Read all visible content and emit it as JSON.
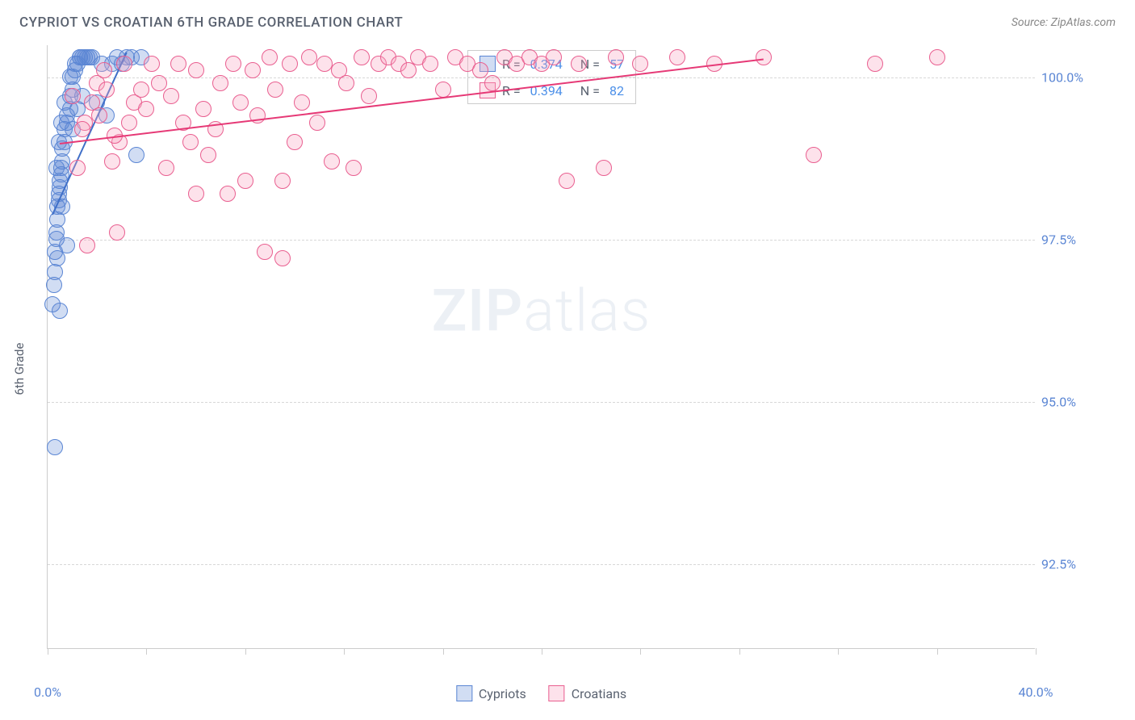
{
  "title": "CYPRIOT VS CROATIAN 6TH GRADE CORRELATION CHART",
  "source": "Source: ZipAtlas.com",
  "ylabel": "6th Grade",
  "watermark_bold": "ZIP",
  "watermark_light": "atlas",
  "chart": {
    "type": "scatter",
    "xlim": [
      0,
      40
    ],
    "ylim": [
      91.2,
      100.5
    ],
    "xtick_positions": [
      0,
      4,
      8,
      12,
      16,
      20,
      24,
      28,
      32,
      36,
      40
    ],
    "xtick_labels": {
      "0": "0.0%",
      "40": "40.0%"
    },
    "ytick_positions": [
      92.5,
      95.0,
      97.5,
      100.0
    ],
    "ytick_labels": [
      "92.5%",
      "95.0%",
      "97.5%",
      "100.0%"
    ],
    "background_color": "#ffffff",
    "grid_color": "#d8d8d8",
    "axis_color": "#cccccc",
    "tick_label_color": "#5b86d4",
    "marker_radius": 10,
    "marker_stroke_width": 1.5,
    "marker_fill_opacity": 0.28,
    "series": [
      {
        "name": "Cypriots",
        "color_stroke": "#5b86d4",
        "color_fill": "rgba(91,134,212,0.28)",
        "R": 0.374,
        "N": 57,
        "trend": {
          "x1": 0.2,
          "y1": 97.9,
          "x2": 3.2,
          "y2": 100.4,
          "color": "#3f6fc8"
        },
        "points": [
          [
            0.2,
            96.5
          ],
          [
            0.25,
            96.8
          ],
          [
            0.3,
            97.0
          ],
          [
            0.3,
            97.3
          ],
          [
            0.35,
            97.5
          ],
          [
            0.35,
            97.6
          ],
          [
            0.4,
            97.8
          ],
          [
            0.4,
            98.0
          ],
          [
            0.45,
            98.1
          ],
          [
            0.45,
            98.2
          ],
          [
            0.5,
            98.3
          ],
          [
            0.5,
            98.4
          ],
          [
            0.55,
            98.5
          ],
          [
            0.55,
            98.6
          ],
          [
            0.6,
            98.7
          ],
          [
            0.6,
            98.9
          ],
          [
            0.7,
            99.0
          ],
          [
            0.7,
            99.2
          ],
          [
            0.8,
            99.3
          ],
          [
            0.8,
            99.4
          ],
          [
            0.9,
            99.5
          ],
          [
            0.9,
            99.7
          ],
          [
            1.0,
            99.8
          ],
          [
            1.0,
            100.0
          ],
          [
            1.1,
            100.1
          ],
          [
            1.1,
            100.2
          ],
          [
            1.2,
            100.2
          ],
          [
            1.3,
            100.3
          ],
          [
            1.3,
            100.3
          ],
          [
            1.4,
            100.3
          ],
          [
            1.5,
            100.3
          ],
          [
            1.6,
            100.3
          ],
          [
            1.7,
            100.3
          ],
          [
            1.8,
            100.3
          ],
          [
            2.0,
            99.6
          ],
          [
            2.2,
            100.2
          ],
          [
            2.4,
            99.4
          ],
          [
            2.6,
            100.2
          ],
          [
            2.8,
            100.3
          ],
          [
            3.0,
            100.2
          ],
          [
            3.2,
            100.3
          ],
          [
            3.4,
            100.3
          ],
          [
            3.6,
            98.8
          ],
          [
            3.8,
            100.3
          ],
          [
            0.3,
            94.3
          ],
          [
            0.5,
            96.4
          ],
          [
            0.4,
            97.2
          ],
          [
            0.6,
            98.0
          ],
          [
            0.8,
            97.4
          ],
          [
            1.0,
            99.2
          ],
          [
            1.2,
            99.5
          ],
          [
            1.4,
            99.7
          ],
          [
            0.35,
            98.6
          ],
          [
            0.45,
            99.0
          ],
          [
            0.55,
            99.3
          ],
          [
            0.7,
            99.6
          ],
          [
            0.9,
            100.0
          ]
        ]
      },
      {
        "name": "Croatians",
        "color_stroke": "#e95f90",
        "color_fill": "rgba(248,165,194,0.32)",
        "R": 0.394,
        "N": 82,
        "trend": {
          "x1": 0.5,
          "y1": 99.0,
          "x2": 29.0,
          "y2": 100.3,
          "color": "#e63976"
        },
        "points": [
          [
            1.5,
            99.3
          ],
          [
            2.0,
            99.9
          ],
          [
            2.3,
            100.1
          ],
          [
            2.6,
            98.7
          ],
          [
            2.8,
            97.6
          ],
          [
            2.9,
            99.0
          ],
          [
            3.1,
            100.2
          ],
          [
            3.3,
            99.3
          ],
          [
            3.5,
            99.6
          ],
          [
            3.8,
            99.8
          ],
          [
            4.0,
            99.5
          ],
          [
            4.2,
            100.2
          ],
          [
            4.5,
            99.9
          ],
          [
            4.8,
            98.6
          ],
          [
            5.0,
            99.7
          ],
          [
            5.3,
            100.2
          ],
          [
            5.5,
            99.3
          ],
          [
            5.8,
            99.0
          ],
          [
            6.0,
            100.1
          ],
          [
            6.3,
            99.5
          ],
          [
            6.5,
            98.8
          ],
          [
            6.8,
            99.2
          ],
          [
            7.0,
            99.9
          ],
          [
            7.3,
            98.2
          ],
          [
            7.5,
            100.2
          ],
          [
            7.8,
            99.6
          ],
          [
            8.0,
            98.4
          ],
          [
            8.3,
            100.1
          ],
          [
            8.5,
            99.4
          ],
          [
            8.8,
            97.3
          ],
          [
            9.0,
            100.3
          ],
          [
            9.2,
            99.8
          ],
          [
            9.5,
            98.4
          ],
          [
            9.8,
            100.2
          ],
          [
            10.0,
            99.0
          ],
          [
            10.3,
            99.6
          ],
          [
            10.6,
            100.3
          ],
          [
            10.9,
            99.3
          ],
          [
            11.2,
            100.2
          ],
          [
            11.5,
            98.7
          ],
          [
            11.8,
            100.1
          ],
          [
            12.1,
            99.9
          ],
          [
            12.4,
            98.6
          ],
          [
            12.7,
            100.3
          ],
          [
            13.0,
            99.7
          ],
          [
            13.4,
            100.2
          ],
          [
            13.8,
            100.3
          ],
          [
            14.2,
            100.2
          ],
          [
            14.6,
            100.1
          ],
          [
            15.0,
            100.3
          ],
          [
            15.5,
            100.2
          ],
          [
            16.0,
            99.8
          ],
          [
            16.5,
            100.3
          ],
          [
            17.0,
            100.2
          ],
          [
            17.5,
            100.1
          ],
          [
            18.0,
            99.9
          ],
          [
            18.5,
            100.3
          ],
          [
            19.0,
            100.2
          ],
          [
            19.5,
            100.3
          ],
          [
            20.0,
            100.2
          ],
          [
            20.5,
            100.3
          ],
          [
            21.0,
            98.4
          ],
          [
            21.5,
            100.2
          ],
          [
            22.5,
            98.6
          ],
          [
            23.0,
            100.3
          ],
          [
            24.0,
            100.2
          ],
          [
            25.5,
            100.3
          ],
          [
            27.0,
            100.2
          ],
          [
            29.0,
            100.3
          ],
          [
            31.0,
            98.8
          ],
          [
            33.5,
            100.2
          ],
          [
            36.0,
            100.3
          ],
          [
            1.0,
            99.7
          ],
          [
            1.2,
            98.6
          ],
          [
            1.4,
            99.2
          ],
          [
            1.6,
            97.4
          ],
          [
            1.8,
            99.6
          ],
          [
            2.1,
            99.4
          ],
          [
            2.4,
            99.8
          ],
          [
            2.7,
            99.1
          ],
          [
            6.0,
            98.2
          ],
          [
            9.5,
            97.2
          ]
        ]
      }
    ]
  },
  "legend_stats": {
    "rows": [
      {
        "swatch_fill": "rgba(91,134,212,0.28)",
        "swatch_stroke": "#5b86d4",
        "r_label": "R =",
        "r_val": "0.374",
        "n_label": "N =",
        "n_val": "57"
      },
      {
        "swatch_fill": "rgba(248,165,194,0.32)",
        "swatch_stroke": "#e95f90",
        "r_label": "R =",
        "r_val": "0.394",
        "n_label": "N =",
        "n_val": "82"
      }
    ]
  },
  "bottom_legend": [
    {
      "swatch_fill": "rgba(91,134,212,0.28)",
      "swatch_stroke": "#5b86d4",
      "label": "Cypriots"
    },
    {
      "swatch_fill": "rgba(248,165,194,0.32)",
      "swatch_stroke": "#e95f90",
      "label": "Croatians"
    }
  ]
}
